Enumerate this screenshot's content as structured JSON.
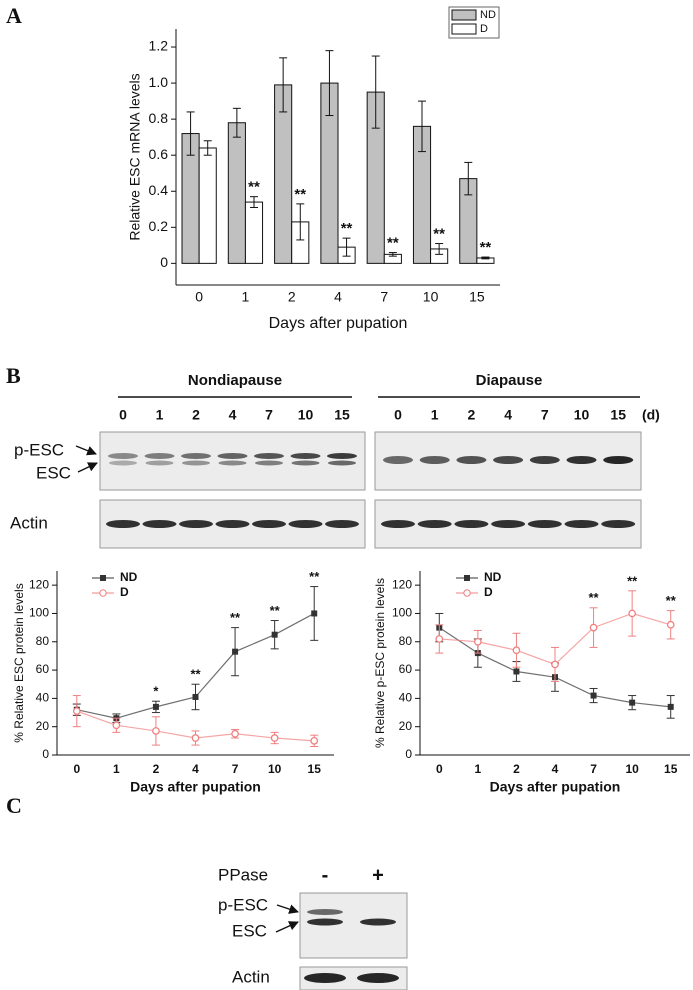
{
  "panel_labels": [
    "A",
    "B",
    "C"
  ],
  "chart_data": [
    {
      "type": "bar",
      "categories": [
        "0",
        "1",
        "2",
        "4",
        "7",
        "10",
        "15"
      ],
      "series": [
        {
          "name": "ND",
          "color": "#c0c0c0",
          "values": [
            0.72,
            0.78,
            0.99,
            1.0,
            0.95,
            0.76,
            0.47
          ],
          "errors": [
            0.12,
            0.08,
            0.15,
            0.18,
            0.2,
            0.14,
            0.09
          ]
        },
        {
          "name": "D",
          "color": "#ffffff",
          "values": [
            0.64,
            0.34,
            0.23,
            0.09,
            0.05,
            0.08,
            0.03
          ],
          "errors": [
            0.04,
            0.03,
            0.1,
            0.05,
            0.01,
            0.03,
            0.005
          ],
          "significance": [
            null,
            "**",
            "**",
            "**",
            "**",
            "**",
            "**"
          ]
        }
      ],
      "ylabel": "Relative ESC mRNA levels",
      "xlabel": "Days after pupation",
      "ylim": [
        -0.12,
        1.3
      ],
      "yticks": [
        0,
        0.2,
        0.4,
        0.6,
        0.8,
        {
          "value": 1,
          "label": "1.0"
        },
        1.2
      ],
      "legend": "upper right"
    },
    {
      "type": "line",
      "categories": [
        "0",
        "1",
        "2",
        "4",
        "7",
        "10",
        "15"
      ],
      "series": [
        {
          "name": "ND",
          "color": "#333333",
          "values": [
            32,
            26,
            34,
            41,
            73,
            85,
            100
          ],
          "errors": [
            4,
            3,
            4,
            9,
            17,
            10,
            19
          ],
          "significance": [
            null,
            null,
            "*",
            "**",
            "**",
            "**",
            "**"
          ]
        },
        {
          "name": "D",
          "color": "#f08080",
          "values": [
            31,
            21,
            17,
            12,
            15,
            12,
            10
          ],
          "errors": [
            11,
            5,
            10,
            5,
            3,
            4,
            4
          ]
        }
      ],
      "ylabel": "% Relative ESC protein levels",
      "xlabel": "Days after pupation",
      "ylim": [
        0,
        130
      ],
      "yticks": [
        0,
        20,
        40,
        60,
        80,
        100,
        120
      ],
      "legend": "upper left"
    },
    {
      "type": "line",
      "categories": [
        "0",
        "1",
        "2",
        "4",
        "7",
        "10",
        "15"
      ],
      "series": [
        {
          "name": "ND",
          "color": "#333333",
          "values": [
            90,
            72,
            59,
            55,
            42,
            37,
            34
          ],
          "errors": [
            10,
            10,
            7,
            10,
            5,
            5,
            8
          ]
        },
        {
          "name": "D",
          "color": "#f08080",
          "values": [
            82,
            80,
            74,
            64,
            90,
            100,
            92
          ],
          "errors": [
            10,
            8,
            12,
            12,
            14,
            16,
            10
          ],
          "significance": [
            null,
            null,
            null,
            null,
            "**",
            "**",
            "**"
          ]
        }
      ],
      "ylabel": "% Relative p-ESC protein levels",
      "xlabel": "Days after pupation",
      "ylim": [
        0,
        130
      ],
      "yticks": [
        0,
        20,
        40,
        60,
        80,
        100,
        120
      ],
      "legend": "upper left"
    }
  ],
  "blot_b": {
    "groups": [
      {
        "title": "Nondiapause",
        "lanes": [
          "0",
          "1",
          "2",
          "4",
          "7",
          "10",
          "15"
        ]
      },
      {
        "title": "Diapause",
        "lanes": [
          "0",
          "1",
          "2",
          "4",
          "7",
          "10",
          "15"
        ],
        "unit": "(d)"
      }
    ],
    "band_labels": [
      "p-ESC",
      "ESC"
    ],
    "loading_label": "Actin"
  },
  "blot_c": {
    "treatment": "PPase",
    "lanes": [
      "-",
      "+"
    ],
    "band_labels": [
      "p-ESC",
      "ESC"
    ],
    "loading_label": "Actin"
  }
}
